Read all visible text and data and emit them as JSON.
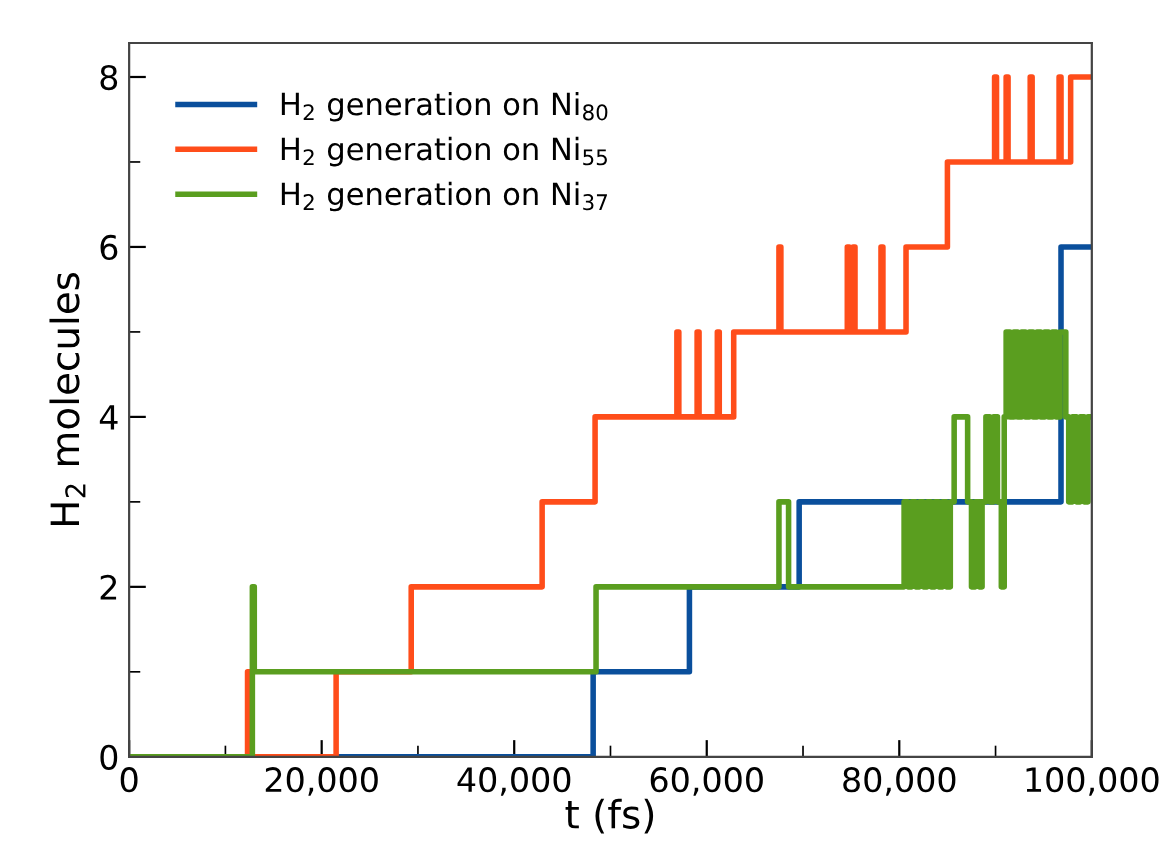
{
  "chart_data": {
    "type": "step",
    "xlabel": "t (fs)",
    "ylabel": "H$_{2}$ molecules",
    "xlim": [
      0,
      100000
    ],
    "ylim": [
      0,
      8.4
    ],
    "xticks": [
      0,
      {
        "value": 20000,
        "label": "20,000"
      },
      {
        "value": 40000,
        "label": "40,000"
      },
      {
        "value": 60000,
        "label": "60,000"
      },
      {
        "value": 80000,
        "label": "80,000"
      },
      {
        "value": 100000,
        "label": "100,000"
      }
    ],
    "yticks": [
      0,
      2,
      4,
      6,
      8
    ],
    "grid": false,
    "legend": "top left",
    "marker": "none",
    "line_style": "solid",
    "series": [
      {
        "name": "H$_{2}$ generation on Ni$_{80}$",
        "color": "#0a4f9c",
        "x": [
          0,
          48200,
          58200,
          69600,
          96800,
          100000
        ],
        "values": [
          0,
          1,
          2,
          3,
          6,
          6
        ]
      },
      {
        "name": "H$_{2}$ generation on Ni$_{55}$",
        "color": "#ff4d1a",
        "x": [
          0,
          12300,
          12500,
          21500,
          29300,
          42900,
          48400,
          56900,
          57100,
          59000,
          59200,
          61100,
          61300,
          62800,
          67500,
          67700,
          74600,
          74800,
          75200,
          75400,
          78100,
          78300,
          80700,
          85000,
          89900,
          90100,
          91100,
          91300,
          93600,
          93800,
          96600,
          96800,
          97800,
          100000
        ],
        "values": [
          0,
          1,
          0,
          1,
          2,
          3,
          4,
          5,
          4,
          5,
          4,
          5,
          4,
          5,
          6,
          5,
          6,
          5,
          6,
          5,
          6,
          5,
          6,
          7,
          8,
          7,
          8,
          7,
          8,
          7,
          8,
          7,
          8,
          8
        ]
      },
      {
        "name": "H$_{2}$ generation on Ni$_{37}$",
        "color": "#5a9e1f",
        "x": [
          0,
          12800,
          13000,
          48500,
          67500,
          68500,
          80500,
          80900,
          81300,
          81700,
          82100,
          82500,
          82900,
          83300,
          83700,
          84100,
          84500,
          84900,
          85300,
          85700,
          87100,
          87500,
          87900,
          88300,
          88600,
          89000,
          89400,
          89800,
          90200,
          90600,
          90900,
          91100,
          91500,
          91900,
          92300,
          92700,
          93100,
          93500,
          93900,
          94300,
          94700,
          95100,
          95500,
          95900,
          96300,
          96700,
          97300,
          97600,
          98000,
          98400,
          98800,
          99200,
          99600,
          100000
        ],
        "values": [
          0,
          2,
          1,
          2,
          3,
          2,
          3,
          2,
          3,
          2,
          3,
          2,
          3,
          2,
          3,
          2,
          3,
          2,
          3,
          4,
          3,
          2,
          3,
          2,
          3,
          4,
          3,
          4,
          3,
          2,
          4,
          5,
          4,
          5,
          4,
          5,
          4,
          5,
          4,
          5,
          4,
          5,
          4,
          5,
          4,
          5,
          4,
          3,
          4,
          3,
          4,
          3,
          4,
          4
        ]
      }
    ]
  }
}
